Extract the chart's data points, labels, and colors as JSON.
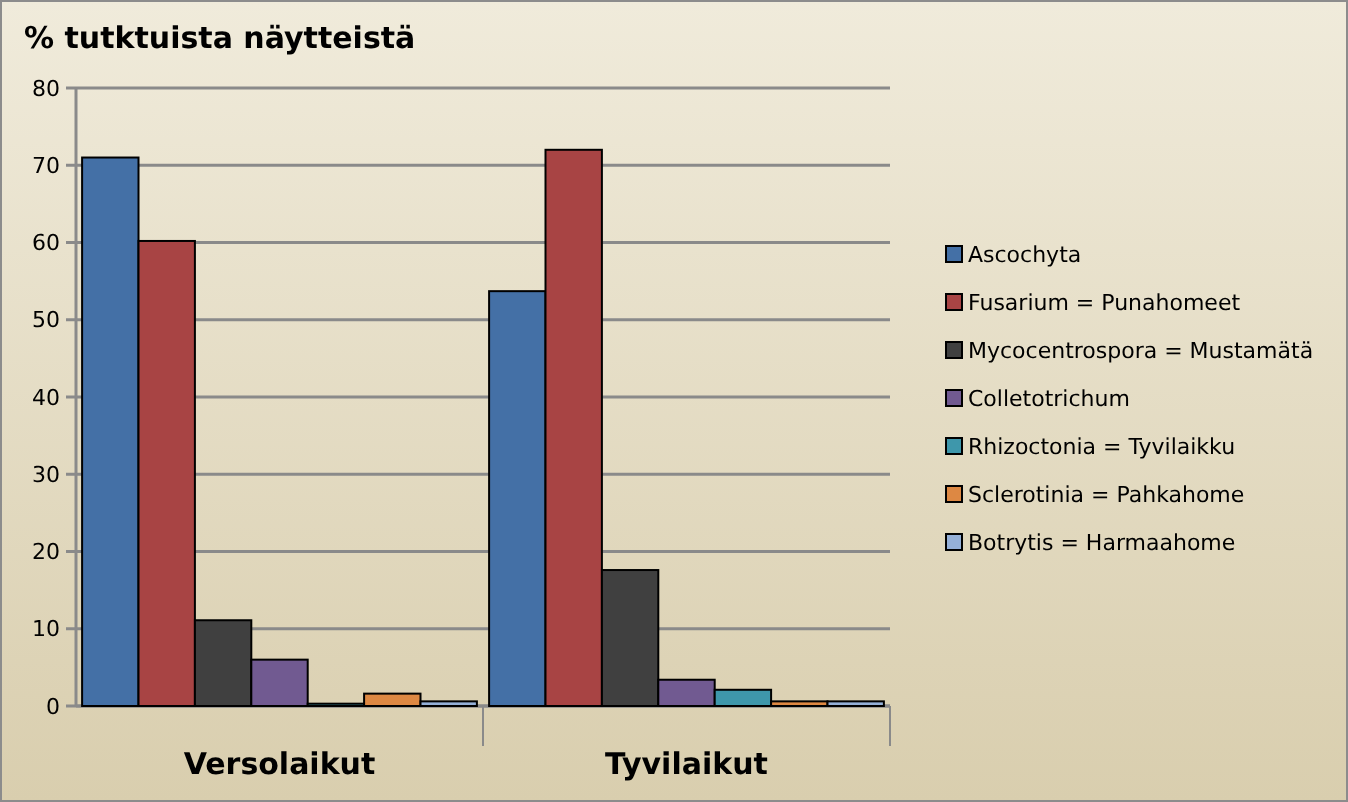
{
  "chart_data": {
    "type": "bar",
    "title": "% tutktuista näytteistä",
    "categories": [
      "Versolaikut",
      "Tyvilaikut"
    ],
    "series": [
      {
        "name": "Ascochyta",
        "color": "#4470a6",
        "values": [
          71,
          53.7
        ]
      },
      {
        "name": "Fusarium = Punahomeet",
        "color": "#a84444",
        "values": [
          60.2,
          72
        ]
      },
      {
        "name": "Mycocentrospora  = Mustamätä",
        "color": "#404040",
        "values": [
          11.1,
          17.6
        ]
      },
      {
        "name": "Colletotrichum",
        "color": "#715a91",
        "values": [
          6,
          3.4
        ]
      },
      {
        "name": "Rhizoctonia  = Tyvilaikku",
        "color": "#3e97ab",
        "values": [
          0.3,
          2.1
        ]
      },
      {
        "name": "Sclerotinia = Pahkahome",
        "color": "#dd8843",
        "values": [
          1.6,
          0.6
        ]
      },
      {
        "name": "Botrytis = Harmaahome",
        "color": "#95b0d8",
        "values": [
          0.6,
          0.6
        ]
      }
    ],
    "ylim": [
      0,
      80
    ],
    "yticks": [
      0,
      10,
      20,
      30,
      40,
      50,
      60,
      70,
      80
    ],
    "grid": "y",
    "legend": "right"
  }
}
